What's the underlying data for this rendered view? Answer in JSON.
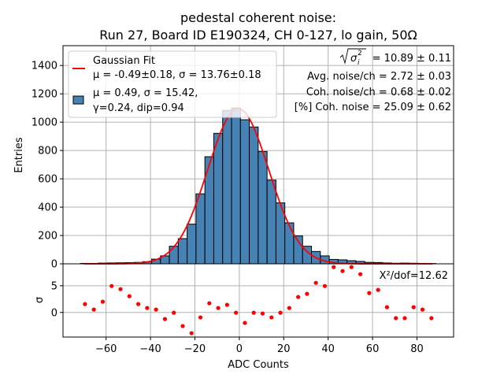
{
  "chart_data": [
    {
      "panel": "main",
      "type": "bar",
      "title_lines": [
        "pedestal coherent noise:",
        "Run 27, Board ID E190324, CH 0-127, lo gain, 50Ω"
      ],
      "xlabel": "",
      "ylabel": "Entries",
      "xlim": [
        -79.4,
        96.5
      ],
      "ylim": [
        0,
        1540
      ],
      "yticks": [
        0,
        200,
        400,
        600,
        800,
        1000,
        1200,
        1400
      ],
      "xticks": [
        -60,
        -40,
        -20,
        0,
        20,
        40,
        60,
        80
      ],
      "grid": true,
      "bin_width": 4,
      "bin_centers": [
        -69.5,
        -65.5,
        -61.5,
        -57.5,
        -53.5,
        -49.5,
        -45.5,
        -41.5,
        -37.5,
        -33.5,
        -29.5,
        -25.5,
        -21.5,
        -17.5,
        -13.5,
        -9.5,
        -5.5,
        -1.5,
        2.5,
        6.5,
        10.5,
        14.5,
        18.5,
        22.5,
        26.5,
        30.5,
        34.5,
        38.5,
        42.5,
        46.5,
        50.5,
        54.5,
        58.5,
        62.5,
        66.5,
        70.5,
        74.5,
        78.5,
        82.5,
        86.5
      ],
      "values": [
        3,
        3,
        5,
        6,
        7,
        8,
        10,
        15,
        33,
        56,
        124,
        178,
        280,
        494,
        756,
        921,
        1083,
        1100,
        1017,
        966,
        793,
        591,
        430,
        289,
        197,
        124,
        87,
        56,
        31,
        28,
        22,
        17,
        10,
        9,
        6,
        4,
        5,
        4,
        3,
        2
      ],
      "bar_color": "#4682b4",
      "edge_color": "#000000",
      "fit": {
        "name": "Gaussian Fit",
        "mu": -0.49,
        "sigma": 13.76,
        "amplitude": 1095,
        "x_range": [
          -70,
          87
        ],
        "color": "#ff0000"
      },
      "legend": {
        "position": "top-left",
        "entries": [
          {
            "kind": "line",
            "color": "#ff0000",
            "lines": [
              "Gaussian Fit",
              "μ = -0.49±0.18, σ = 13.76±0.18"
            ]
          },
          {
            "kind": "patch",
            "color": "#4682b4",
            "lines": [
              "μ = 0.49, σ = 15.42,",
              "γ=0.24, dip=0.94"
            ]
          }
        ]
      },
      "annotations": [
        {
          "label": "sqrt_sigma_i2",
          "text": " = 10.89 ± 0.11"
        },
        {
          "label": "avg_noise",
          "text": "Avg. noise/ch = 2.72 ± 0.03"
        },
        {
          "label": "coh_noise",
          "text": "Coh. noise/ch = 0.68 ± 0.02"
        },
        {
          "label": "pct_coh_noise",
          "text": "[%] Coh. noise = 25.09  ± 0.62"
        }
      ]
    },
    {
      "panel": "residuals",
      "type": "scatter",
      "xlabel": "ADC Counts",
      "ylabel": "σ",
      "xlim": [
        -79.4,
        96.5
      ],
      "ylim": [
        -4.6,
        9.1
      ],
      "yticks": [
        0,
        5
      ],
      "xticks": [
        -60,
        -40,
        -20,
        0,
        20,
        40,
        60,
        80
      ],
      "grid": true,
      "x": [
        -69.5,
        -65.5,
        -61.5,
        -57.5,
        -53.5,
        -49.5,
        -45.5,
        -41.5,
        -37.5,
        -33.5,
        -29.5,
        -25.5,
        -21.5,
        -17.5,
        -13.5,
        -9.5,
        -5.5,
        -1.5,
        2.5,
        6.5,
        10.5,
        14.5,
        18.5,
        22.5,
        26.5,
        30.5,
        34.5,
        38.5,
        42.5,
        46.5,
        50.5,
        54.5,
        58.5,
        62.5,
        66.5,
        70.5,
        74.5,
        78.5,
        82.5,
        86.5
      ],
      "y": [
        1.57,
        0.54,
        2.01,
        4.95,
        4.36,
        3.04,
        1.57,
        0.83,
        0.54,
        -1.23,
        -0.05,
        -2.55,
        -3.87,
        -0.93,
        1.72,
        0.83,
        1.42,
        -0.05,
        -1.96,
        -0.05,
        -0.2,
        -0.93,
        -0.05,
        0.83,
        2.89,
        3.48,
        5.54,
        4.95,
        8.48,
        7.75,
        8.48,
        7.16,
        3.63,
        4.22,
        0.98,
        -1.07,
        -1.07,
        0.98,
        0.54,
        -1.07
      ],
      "point_color": "#ff0000",
      "annotation": "X²/dof=12.62"
    }
  ]
}
